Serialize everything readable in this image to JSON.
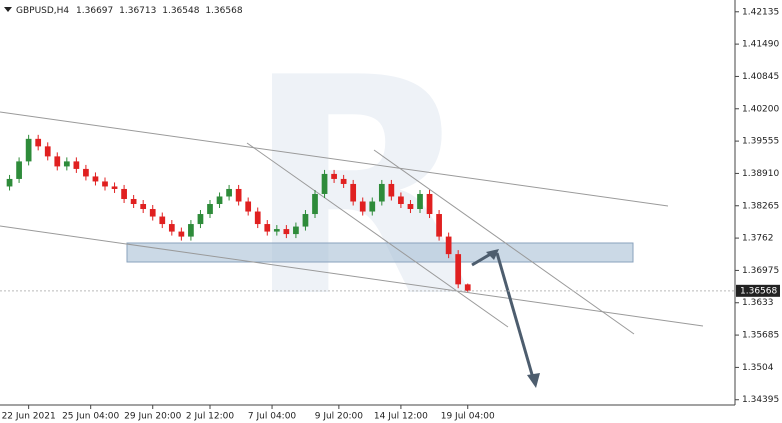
{
  "chart_data": {
    "type": "candlestick",
    "symbol": "GBPUSD,H4",
    "xlim": [
      -1,
      76
    ],
    "xticks": [
      {
        "value": 2,
        "label": "22 Jun 2021"
      },
      {
        "value": 8.5,
        "label": "25 Jun 04:00"
      },
      {
        "value": 15,
        "label": "29 Jun 20:00"
      },
      {
        "value": 21,
        "label": "2 Jul 12:00"
      },
      {
        "value": 27.5,
        "label": "7 Jul 04:00"
      },
      {
        "value": 34.5,
        "label": "9 Jul 20:00"
      },
      {
        "value": 41,
        "label": "14 Jul 12:00"
      },
      {
        "value": 48,
        "label": "19 Jul 04:00"
      }
    ],
    "ylim": [
      1.3429,
      1.4237
    ],
    "yticks": [
      1.42135,
      {
        "value": 1.4149,
        "label": "1.41490"
      },
      1.40845,
      {
        "value": 1.402,
        "label": "1.40200"
      },
      1.39555,
      {
        "value": 1.3891,
        "label": "1.38910"
      },
      1.38265,
      1.3762,
      1.36975,
      1.3633,
      1.35685,
      1.3504,
      1.34395
    ],
    "up_color": "#2e8b3a",
    "down_color": "#e02020",
    "open": [
      1.3865,
      1.388,
      1.3915,
      1.396,
      1.3945,
      1.3925,
      1.3905,
      1.3915,
      1.39,
      1.3885,
      1.3875,
      1.3865,
      1.386,
      1.384,
      1.383,
      1.382,
      1.3805,
      1.379,
      1.3775,
      1.3765,
      1.379,
      1.381,
      1.383,
      1.3845,
      1.386,
      1.3835,
      1.3815,
      1.379,
      1.3775,
      1.378,
      1.377,
      1.3785,
      1.381,
      1.385,
      1.389,
      1.388,
      1.387,
      1.3835,
      1.3815,
      1.3835,
      1.387,
      1.3845,
      1.383,
      1.382,
      1.385,
      1.381,
      1.3765,
      1.373,
      1.36697
    ],
    "high": [
      1.3888,
      1.3923,
      1.3968,
      1.3968,
      1.3953,
      1.3933,
      1.3923,
      1.3923,
      1.3908,
      1.3893,
      1.3883,
      1.3873,
      1.3868,
      1.3848,
      1.3838,
      1.3828,
      1.3813,
      1.3798,
      1.3783,
      1.3798,
      1.3818,
      1.3838,
      1.3853,
      1.3868,
      1.3868,
      1.3843,
      1.3823,
      1.3798,
      1.3788,
      1.3788,
      1.3793,
      1.3818,
      1.3858,
      1.3898,
      1.3898,
      1.3888,
      1.3878,
      1.3843,
      1.3843,
      1.3878,
      1.3878,
      1.3853,
      1.3838,
      1.3858,
      1.3858,
      1.3818,
      1.3773,
      1.3738,
      1.36713
    ],
    "low": [
      1.3857,
      1.3872,
      1.3907,
      1.3937,
      1.3917,
      1.3897,
      1.3897,
      1.3892,
      1.3877,
      1.3867,
      1.3857,
      1.3852,
      1.3832,
      1.3822,
      1.3812,
      1.3797,
      1.3782,
      1.3767,
      1.3757,
      1.3757,
      1.3782,
      1.3802,
      1.3822,
      1.3837,
      1.3827,
      1.3807,
      1.3782,
      1.3767,
      1.3767,
      1.3762,
      1.3762,
      1.3777,
      1.3802,
      1.3842,
      1.3872,
      1.3862,
      1.3827,
      1.3807,
      1.3807,
      1.3827,
      1.3837,
      1.3822,
      1.3812,
      1.3812,
      1.3802,
      1.3757,
      1.3722,
      1.3662,
      1.36548
    ],
    "close": [
      1.388,
      1.3915,
      1.396,
      1.3945,
      1.3925,
      1.3905,
      1.3915,
      1.39,
      1.3885,
      1.3875,
      1.3865,
      1.386,
      1.384,
      1.383,
      1.382,
      1.3805,
      1.379,
      1.3775,
      1.3765,
      1.379,
      1.381,
      1.383,
      1.3845,
      1.386,
      1.3835,
      1.3815,
      1.379,
      1.3775,
      1.378,
      1.377,
      1.3785,
      1.381,
      1.385,
      1.389,
      1.388,
      1.387,
      1.3835,
      1.3815,
      1.3835,
      1.387,
      1.3845,
      1.383,
      1.382,
      1.385,
      1.381,
      1.3765,
      1.373,
      1.36697,
      1.36568
    ]
  }
}
